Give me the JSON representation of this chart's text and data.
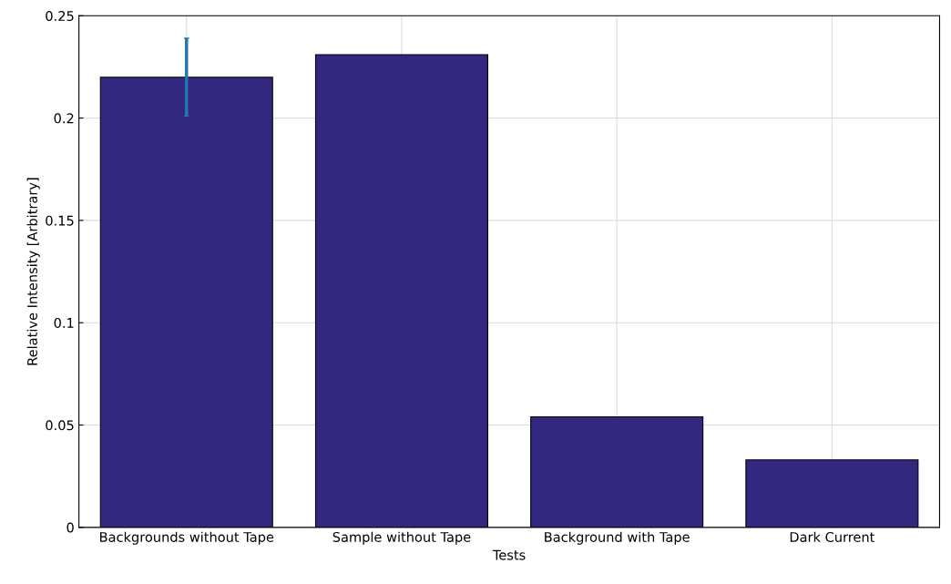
{
  "chart_data": {
    "type": "bar",
    "xlabel": "Tests",
    "ylabel": "Relative Intensity [Arbitrary]",
    "categories": [
      "Backgrounds without Tape",
      "Sample without Tape",
      "Background with Tape",
      "Dark Current"
    ],
    "values": [
      0.22,
      0.231,
      0.054,
      0.033
    ],
    "errors": [
      0.019,
      null,
      null,
      null
    ],
    "color": "#33287f",
    "ylim": [
      0,
      0.25
    ],
    "yticks": [
      0,
      0.05,
      0.1,
      0.15,
      0.2,
      0.25
    ],
    "grid": true
  }
}
